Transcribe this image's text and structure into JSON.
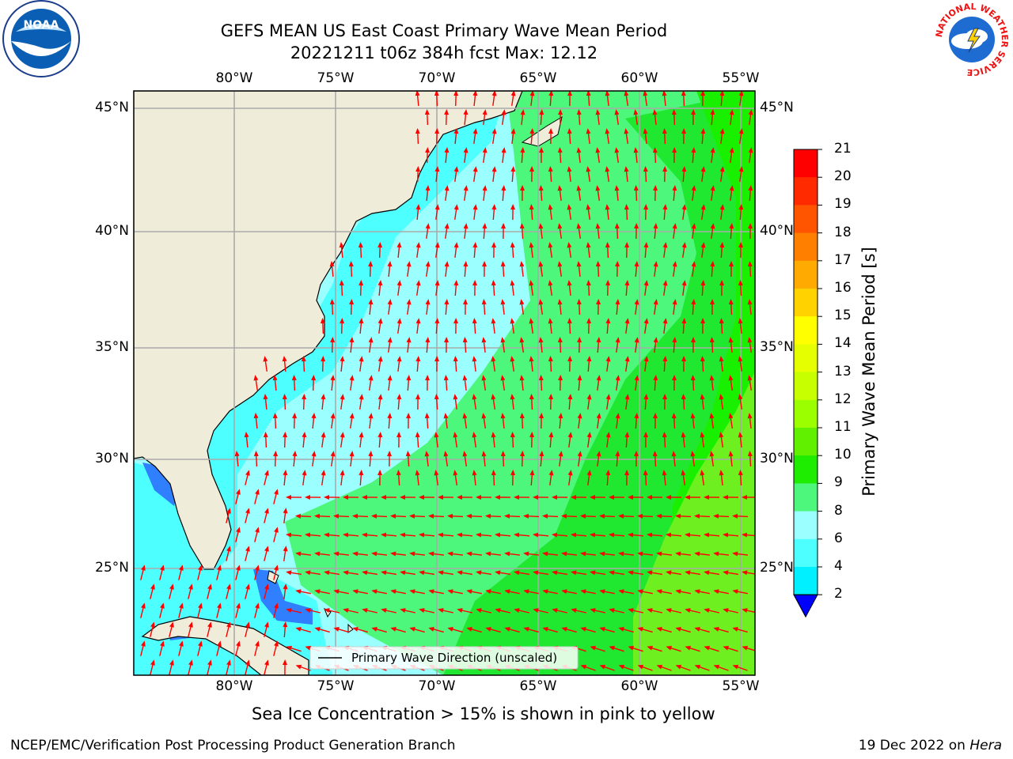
{
  "title": {
    "line1": "GEFS MEAN US East Coast Primary Wave Mean Period",
    "line2": "20221211 t06z 384h fcst   Max: 12.12"
  },
  "map": {
    "lon_labels": [
      "80°W",
      "75°W",
      "70°W",
      "65°W",
      "60°W",
      "55°W"
    ],
    "lat_labels": [
      "45°N",
      "40°N",
      "35°N",
      "30°N",
      "25°N"
    ],
    "legend_label": "Primary Wave Direction (unscaled)",
    "colors": {
      "land": "#efedd9",
      "ocean_cyan": "#4dffff",
      "ocean_pale": "#9cffff",
      "green_light": "#4cf77b",
      "green": "#20e830",
      "green_bright": "#19f000",
      "yellow_green": "#6ef020",
      "blue": "#2f7fff",
      "arrow": "#ff0000"
    }
  },
  "colorbar": {
    "label": "Primary Wave Mean Period [s]",
    "ticks": [
      "21",
      "20",
      "19",
      "18",
      "17",
      "16",
      "15",
      "14",
      "13",
      "12",
      "11",
      "10",
      "9",
      "8",
      "6",
      "4",
      "2"
    ],
    "colors": [
      "#ff0000",
      "#ff2a00",
      "#ff5500",
      "#ff8000",
      "#ffaa00",
      "#ffd200",
      "#ffff00",
      "#e6ff00",
      "#c8ff00",
      "#9cff00",
      "#60f000",
      "#1eec00",
      "#4cf77b",
      "#9cffff",
      "#4dffff",
      "#00f0ff",
      "#007fff"
    ],
    "under_color": "#0000ff"
  },
  "note": "Sea Ice Concentration > 15% is shown in pink to yellow",
  "footer": {
    "left": "NCEP/EMC/Verification Post Processing Product Generation Branch",
    "right_prefix": "19 Dec 2022 on ",
    "right_host": "Hera"
  },
  "logos": {
    "noaa": "NOAA",
    "nws": "NATIONAL WEATHER SERVICE"
  }
}
